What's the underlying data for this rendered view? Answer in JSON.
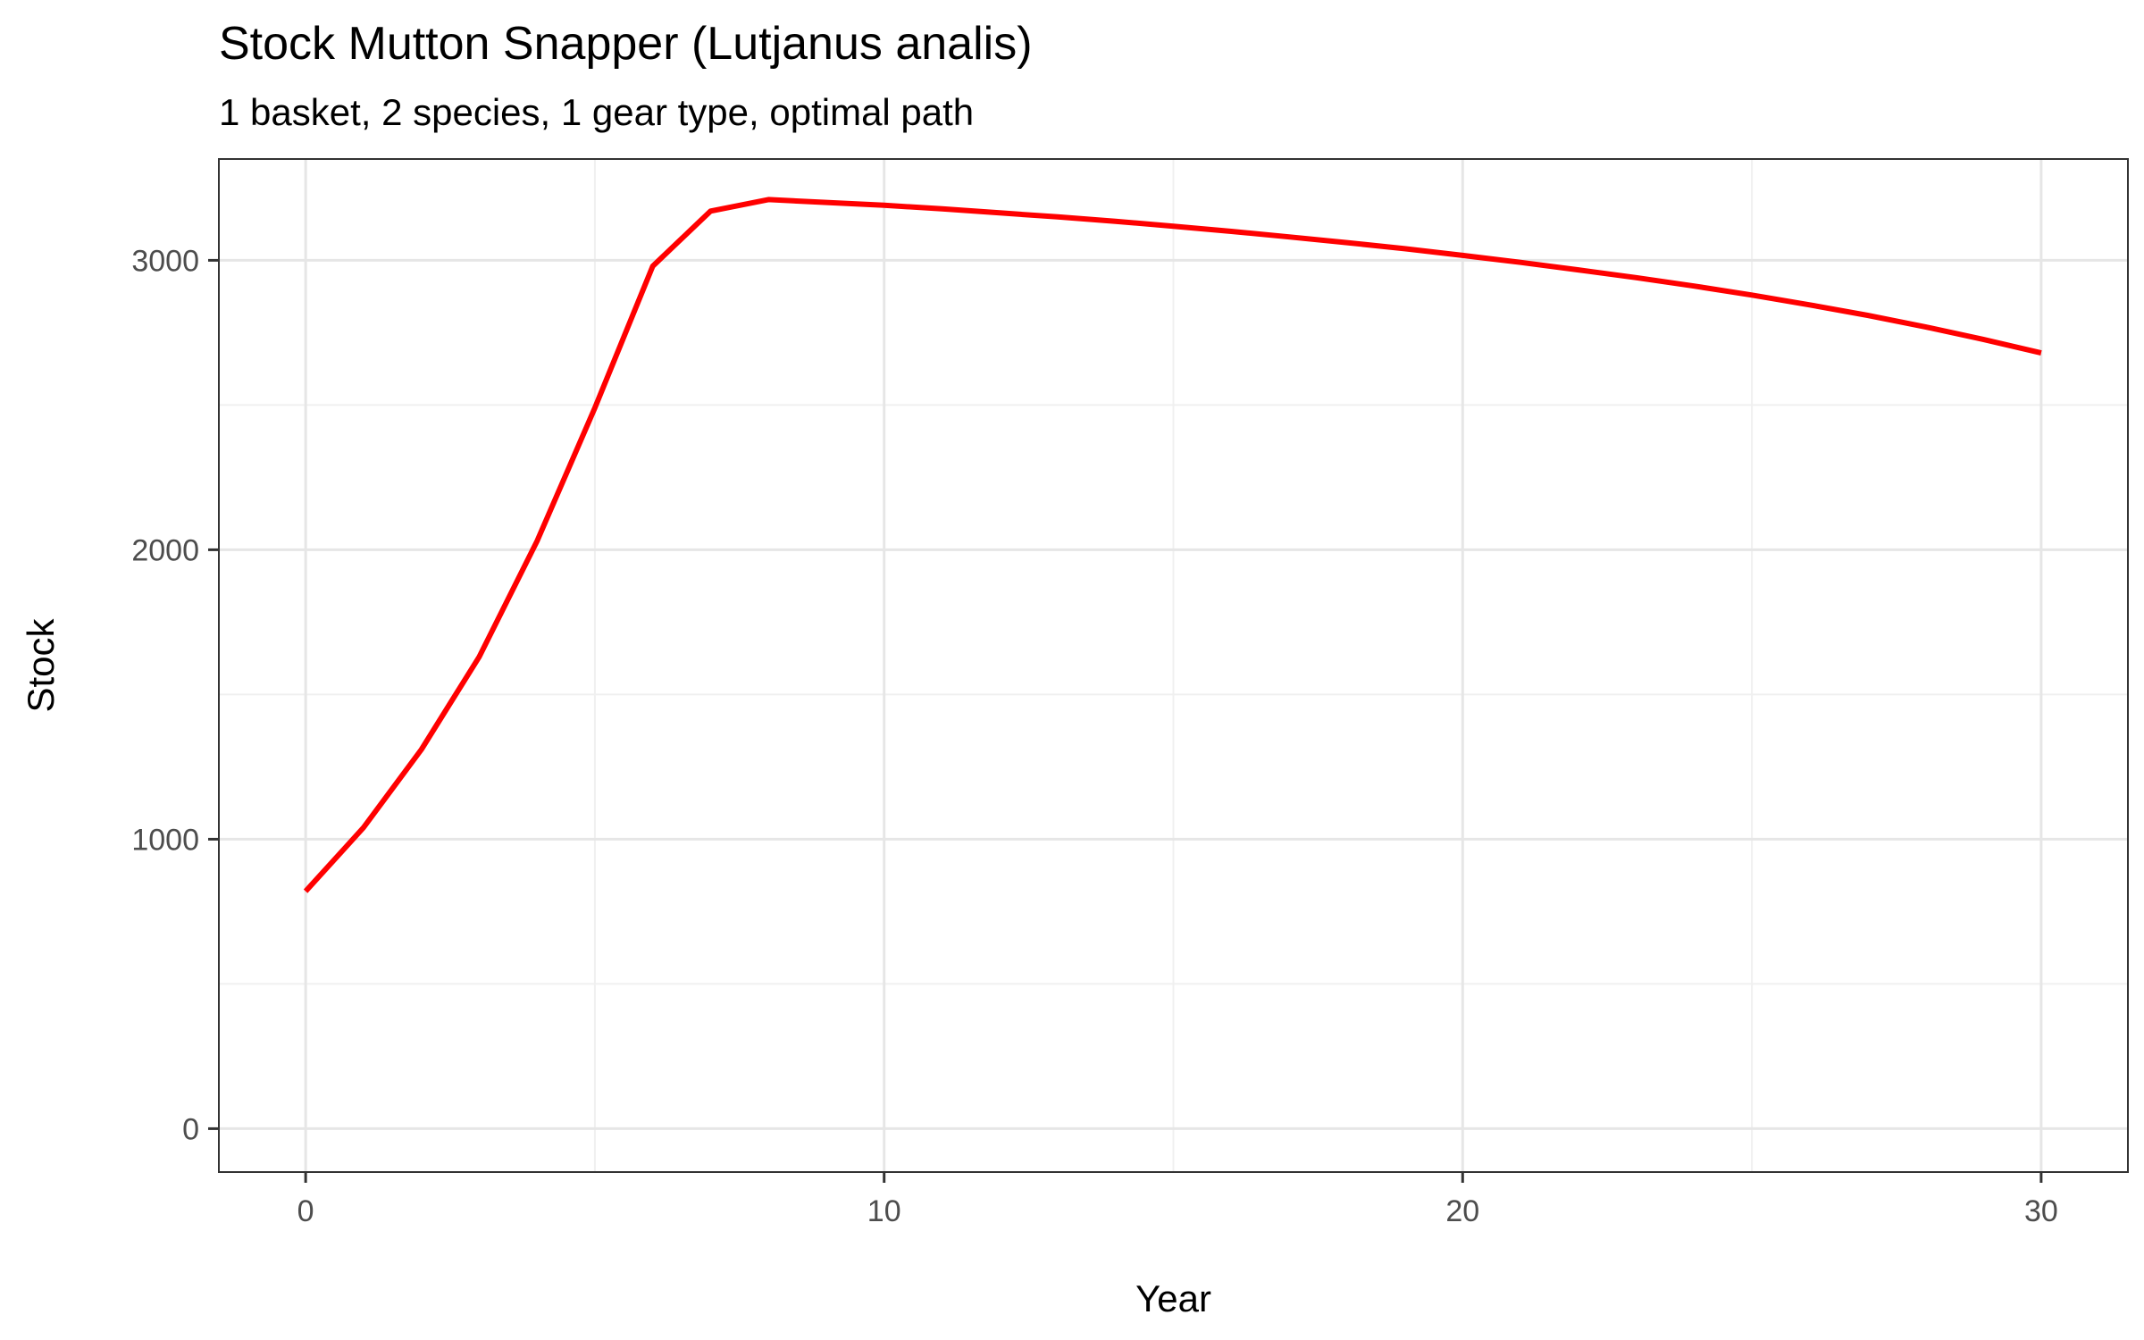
{
  "chart_data": {
    "type": "line",
    "title": "Stock Mutton Snapper (Lutjanus analis)",
    "subtitle": "1 basket, 2 species, 1 gear type, optimal path",
    "xlabel": "Year",
    "ylabel": "Stock",
    "xlim": [
      -1.5,
      31.5
    ],
    "ylim": [
      -150,
      3350
    ],
    "x_ticks": [
      0,
      10,
      20,
      30
    ],
    "y_ticks": [
      0,
      1000,
      2000,
      3000
    ],
    "x_ticks_minor": [
      5,
      15,
      25
    ],
    "y_ticks_minor": [
      500,
      1500,
      2500
    ],
    "grid": true,
    "legend": "none",
    "series": [
      {
        "color": "#ff0000",
        "x": [
          0,
          1,
          2,
          3,
          4,
          5,
          6,
          7,
          8,
          9,
          10,
          11,
          12,
          13,
          14,
          15,
          16,
          17,
          18,
          19,
          20,
          21,
          22,
          23,
          24,
          25,
          26,
          27,
          28,
          29,
          30
        ],
        "y": [
          820,
          1040,
          1310,
          1630,
          2030,
          2490,
          2980,
          3170,
          3210,
          3200,
          3190,
          3178,
          3164,
          3150,
          3135,
          3118,
          3100,
          3081,
          3061,
          3040,
          3017,
          2993,
          2967,
          2940,
          2911,
          2880,
          2846,
          2810,
          2770,
          2727,
          2680
        ]
      }
    ]
  }
}
